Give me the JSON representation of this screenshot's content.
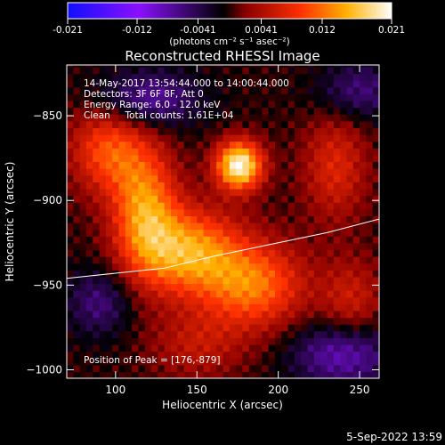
{
  "chart_data": {
    "type": "heatmap",
    "title": "Reconstructed RHESSI Image",
    "xlabel": "Heliocentric X (arcsec)",
    "ylabel": "Heliocentric Y (arcsec)",
    "xlim": [
      70,
      262
    ],
    "ylim": [
      -1005,
      -820
    ],
    "x_ticks": [
      100,
      150,
      200,
      250
    ],
    "y_ticks": [
      -850,
      -900,
      -950,
      -1000
    ],
    "colorbar": {
      "ticks": [
        "-0.021",
        "-0.012",
        "-0.0041",
        "0.0041",
        "0.012",
        "0.021"
      ],
      "range": [
        -0.021,
        0.021
      ],
      "units_label": "(photons cm⁻² s⁻¹ asec⁻²)",
      "colors": [
        "#1010ff",
        "#8a10ff",
        "#000000",
        "#8a0000",
        "#ff3000",
        "#ffb000",
        "#ffffff"
      ]
    },
    "annotations": [
      "14-May-2017 13:54:44.000 to 14:00:44.000",
      "Detectors: 3F 6F 8F, Att 0",
      "Energy Range: 6.0 - 12.0 keV",
      "Clean     Total counts: 1.61E+04"
    ],
    "peak_label": "Position of Peak = [176,-879]",
    "peak": {
      "x": 176,
      "y": -879,
      "value": 0.021
    },
    "limb_curve": [
      [
        70,
        -946
      ],
      [
        100,
        -943
      ],
      [
        130,
        -940
      ],
      [
        160,
        -933
      ],
      [
        200,
        -925
      ],
      [
        230,
        -919
      ],
      [
        262,
        -911
      ]
    ],
    "sources": [
      {
        "x": 176,
        "y": -879,
        "amp": 0.021,
        "sx": 10,
        "sy": 10
      },
      {
        "x": 118,
        "y": -905,
        "amp": 0.013,
        "sx": 14,
        "sy": 26
      },
      {
        "x": 145,
        "y": -930,
        "amp": 0.014,
        "sx": 22,
        "sy": 18
      },
      {
        "x": 185,
        "y": -950,
        "amp": 0.012,
        "sx": 22,
        "sy": 18
      },
      {
        "x": 95,
        "y": -870,
        "amp": 0.01,
        "sx": 16,
        "sy": 18
      },
      {
        "x": 235,
        "y": -880,
        "amp": 0.007,
        "sx": 14,
        "sy": 22
      },
      {
        "x": 245,
        "y": -960,
        "amp": 0.006,
        "sx": 14,
        "sy": 18
      },
      {
        "x": 150,
        "y": -985,
        "amp": 0.005,
        "sx": 20,
        "sy": 14
      },
      {
        "x": 90,
        "y": -960,
        "amp": -0.006,
        "sx": 14,
        "sy": 14
      },
      {
        "x": 120,
        "y": -840,
        "amp": -0.008,
        "sx": 22,
        "sy": 12
      },
      {
        "x": 240,
        "y": -990,
        "amp": -0.009,
        "sx": 22,
        "sy": 14
      },
      {
        "x": 250,
        "y": -835,
        "amp": -0.006,
        "sx": 18,
        "sy": 12
      }
    ]
  },
  "footer_date": "5-Sep-2022 13:59"
}
